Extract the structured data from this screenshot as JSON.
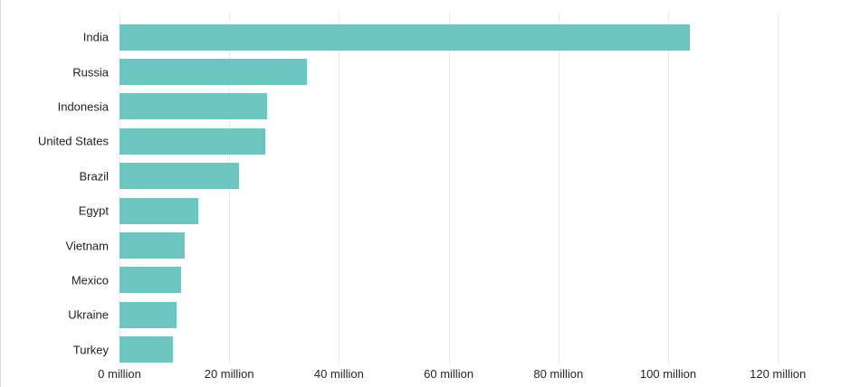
{
  "chart_data": {
    "type": "bar",
    "orientation": "horizontal",
    "title": "",
    "xlabel": "",
    "ylabel": "",
    "unit": "million",
    "categories": [
      "India",
      "Russia",
      "Indonesia",
      "United States",
      "Brazil",
      "Egypt",
      "Vietnam",
      "Mexico",
      "Ukraine",
      "Turkey"
    ],
    "values": [
      104,
      34.2,
      26.9,
      26.5,
      21.7,
      14.4,
      11.8,
      11.2,
      10.4,
      9.7
    ],
    "x_ticks": [
      0,
      20,
      40,
      60,
      80,
      100,
      120
    ],
    "x_tick_labels": [
      "0 million",
      "20 million",
      "40 million",
      "60 million",
      "80 million",
      "100 million",
      "120 million"
    ],
    "xlim": [
      0,
      123.5
    ],
    "grid": "vertical-only",
    "legend": "none",
    "sorted": "descending"
  },
  "colors": {
    "bar": "#6cc5c1",
    "gridline": "#ebebeb",
    "category_label": "#1f1f1f",
    "axis_label": "#262626",
    "frame_border": "#dadada",
    "background": "#ffffff"
  }
}
